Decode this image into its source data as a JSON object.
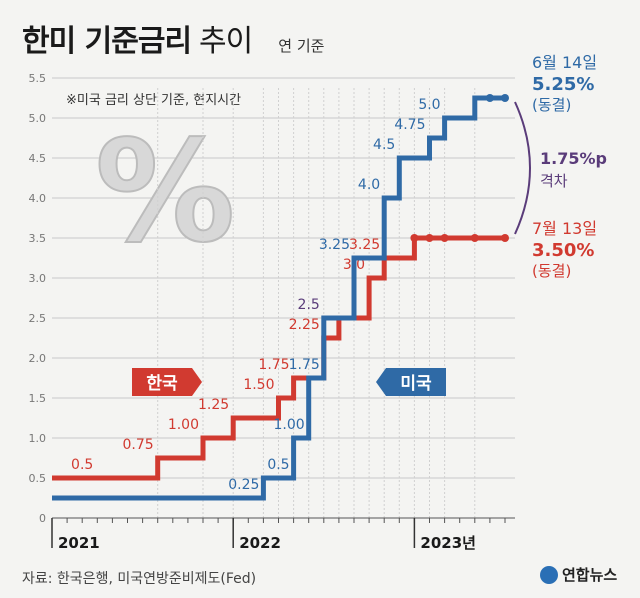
{
  "header": {
    "title_bold": "한미 기준금리",
    "title_light": "추이",
    "basis": "연 기준"
  },
  "note": "※미국 금리 상단 기준, 현지시간",
  "big_symbol": "%",
  "footer": {
    "source": "자료: 한국은행, 미국연방준비제도(Fed)",
    "logo": "연합뉴스"
  },
  "colors": {
    "korea": "#d13a30",
    "us": "#2f6aa6",
    "gap": "#5a3c7a",
    "grid": "#c9c9c9"
  },
  "chart_data": {
    "type": "line",
    "step": true,
    "ylim": [
      0,
      5.5
    ],
    "yticks": [
      "0",
      "0.5",
      "1.0",
      "1.5",
      "2.0",
      "2.5",
      "3.0",
      "3.5",
      "4.0",
      "4.5",
      "5.0",
      "5.5"
    ],
    "xlim": [
      "2021-01",
      "2023-07"
    ],
    "year_labels": [
      {
        "x": "2021-01",
        "label": "2021"
      },
      {
        "x": "2022-01",
        "label": "2022"
      },
      {
        "x": "2023-01",
        "label": "2023년"
      }
    ],
    "series": [
      {
        "name": "한국",
        "points": [
          {
            "x": "2021-01",
            "y": 0.5
          },
          {
            "x": "2021-08",
            "y": 0.75
          },
          {
            "x": "2021-11",
            "y": 1.0
          },
          {
            "x": "2022-01",
            "y": 1.25
          },
          {
            "x": "2022-04",
            "y": 1.5
          },
          {
            "x": "2022-05",
            "y": 1.75
          },
          {
            "x": "2022-07",
            "y": 2.25
          },
          {
            "x": "2022-08",
            "y": 2.5
          },
          {
            "x": "2022-10",
            "y": 3.0
          },
          {
            "x": "2022-11",
            "y": 3.25
          },
          {
            "x": "2023-01",
            "y": 3.5
          },
          {
            "x": "2023-07",
            "y": 3.5
          }
        ],
        "labels": [
          {
            "x": "2021-04",
            "y": 0.5,
            "text": "0.5"
          },
          {
            "x": "2021-08",
            "y": 0.75,
            "text": "0.75"
          },
          {
            "x": "2021-11",
            "y": 1.0,
            "text": "1.00"
          },
          {
            "x": "2022-01",
            "y": 1.25,
            "text": "1.25"
          },
          {
            "x": "2022-04",
            "y": 1.5,
            "text": "1.50"
          },
          {
            "x": "2022-05",
            "y": 1.75,
            "text": "1.75"
          },
          {
            "x": "2022-07",
            "y": 2.25,
            "text": "2.25"
          },
          {
            "x": "2022-10",
            "y": 3.0,
            "text": "3.0"
          },
          {
            "x": "2022-11",
            "y": 3.25,
            "text": "3.25"
          }
        ],
        "latest": {
          "date": "7월 13일",
          "value": "3.50%",
          "status": "(동결)"
        }
      },
      {
        "name": "미국",
        "points": [
          {
            "x": "2021-01",
            "y": 0.25
          },
          {
            "x": "2022-03",
            "y": 0.5
          },
          {
            "x": "2022-05",
            "y": 1.0
          },
          {
            "x": "2022-06",
            "y": 1.75
          },
          {
            "x": "2022-07",
            "y": 2.5
          },
          {
            "x": "2022-09",
            "y": 3.25
          },
          {
            "x": "2022-11",
            "y": 4.0
          },
          {
            "x": "2022-12",
            "y": 4.5
          },
          {
            "x": "2023-02",
            "y": 4.75
          },
          {
            "x": "2023-03",
            "y": 5.0
          },
          {
            "x": "2023-05",
            "y": 5.25
          },
          {
            "x": "2023-07",
            "y": 5.25
          }
        ],
        "labels": [
          {
            "x": "2022-03",
            "y": 0.25,
            "text": "0.25"
          },
          {
            "x": "2022-05",
            "y": 0.5,
            "text": "0.5"
          },
          {
            "x": "2022-06",
            "y": 1.0,
            "text": "1.00"
          },
          {
            "x": "2022-07",
            "y": 1.75,
            "text": "1.75"
          },
          {
            "x": "2022-07",
            "y": 2.5,
            "text": "2.5"
          },
          {
            "x": "2022-09",
            "y": 3.25,
            "text": "3.25"
          },
          {
            "x": "2022-11",
            "y": 4.0,
            "text": "4.0"
          },
          {
            "x": "2022-12",
            "y": 4.5,
            "text": "4.5"
          },
          {
            "x": "2023-02",
            "y": 4.75,
            "text": "4.75"
          },
          {
            "x": "2023-03",
            "y": 5.0,
            "text": "5.0"
          }
        ],
        "latest": {
          "date": "6월 14일",
          "value": "5.25%",
          "status": "(동결)"
        }
      }
    ],
    "annotation": {
      "gap": "1.75%p",
      "gap_label": "격차"
    }
  }
}
